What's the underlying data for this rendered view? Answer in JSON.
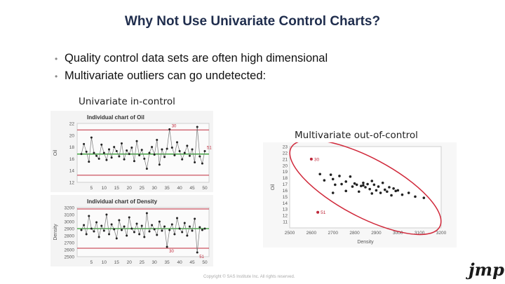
{
  "slide": {
    "title": "Why Not Use Univariate Control Charts?",
    "bullets": [
      "Quality control data sets are often high dimensional",
      "Multivariate outliers can go undetected:"
    ],
    "label_left": "Univariate in-control",
    "label_right": "Multivariate out-of-control",
    "footer": "Copyright © SAS Institute Inc. All rights reserved.",
    "logo": "jmp"
  },
  "colors": {
    "center_line": "#2e9b2e",
    "limit_line": "#c0283a",
    "point": "#222222",
    "ellipse": "#d0283a",
    "highlight": "#c0283a"
  },
  "chart_data": [
    {
      "type": "line",
      "title": "Individual chart of Oil",
      "ylabel": "Oil",
      "x": [
        1,
        2,
        3,
        4,
        5,
        6,
        7,
        8,
        9,
        10,
        11,
        12,
        13,
        14,
        15,
        16,
        17,
        18,
        19,
        20,
        21,
        22,
        23,
        24,
        25,
        26,
        27,
        28,
        29,
        30,
        31,
        32,
        33,
        34,
        35,
        36,
        37,
        38,
        39,
        40,
        41,
        42,
        43,
        44,
        45,
        46,
        47,
        48,
        49,
        50
      ],
      "values": [
        16.8,
        18.5,
        17.2,
        15.5,
        19.6,
        17.0,
        16.5,
        16.0,
        18.4,
        17.0,
        15.8,
        17.6,
        16.2,
        18.0,
        17.3,
        16.4,
        18.6,
        15.9,
        17.4,
        16.8,
        17.9,
        15.6,
        19.0,
        16.6,
        17.5,
        16.0,
        14.3,
        17.0,
        18.0,
        16.7,
        19.2,
        15.0,
        17.6,
        16.3,
        17.7,
        21.0,
        17.9,
        16.6,
        18.8,
        17.3,
        15.9,
        17.0,
        18.2,
        16.5,
        17.6,
        15.4,
        21.4,
        16.4,
        15.2,
        17.3
      ],
      "center": 16.8,
      "ucl": 20.9,
      "lcl": 13.2,
      "ylim": [
        12,
        22
      ],
      "yticks": [
        12,
        14,
        16,
        18,
        20,
        22
      ],
      "xticks": [
        5,
        10,
        15,
        20,
        25,
        30,
        35,
        40,
        45,
        50
      ],
      "annotations": [
        {
          "label": "30",
          "index": 35
        },
        {
          "label": "51",
          "index": 49
        }
      ]
    },
    {
      "type": "line",
      "title": "Individual chart of Density",
      "ylabel": "Density",
      "x": [
        1,
        2,
        3,
        4,
        5,
        6,
        7,
        8,
        9,
        10,
        11,
        12,
        13,
        14,
        15,
        16,
        17,
        18,
        19,
        20,
        21,
        22,
        23,
        24,
        25,
        26,
        27,
        28,
        29,
        30,
        31,
        32,
        33,
        34,
        35,
        36,
        37,
        38,
        39,
        40,
        41,
        42,
        43,
        44,
        45,
        46,
        47,
        48,
        49,
        50
      ],
      "values": [
        2880,
        2950,
        2820,
        3080,
        2900,
        2860,
        2990,
        2780,
        2940,
        2870,
        3100,
        2820,
        2960,
        2890,
        2760,
        3020,
        2880,
        2930,
        2800,
        3060,
        2900,
        2850,
        2970,
        2820,
        2940,
        2780,
        3120,
        2860,
        2950,
        2890,
        2810,
        3000,
        2870,
        2930,
        2640,
        2880,
        2960,
        2820,
        3050,
        2900,
        2850,
        2980,
        2800,
        2930,
        2870,
        3040,
        2560,
        2920,
        2880,
        2900
      ],
      "center": 2900,
      "ucl": 3180,
      "lcl": 2620,
      "ylim": [
        2500,
        3200
      ],
      "yticks": [
        2500,
        2600,
        2700,
        2800,
        2900,
        3000,
        3100,
        3200
      ],
      "xticks": [
        5,
        10,
        15,
        20,
        25,
        30,
        35,
        40,
        45,
        50
      ],
      "annotations": [
        {
          "label": "30",
          "index": 34
        },
        {
          "label": "51",
          "index": 46
        }
      ]
    },
    {
      "type": "scatter",
      "xlabel": "Density",
      "ylabel": "Oil",
      "xlim": [
        2500,
        3200
      ],
      "ylim": [
        10,
        23
      ],
      "xticks": [
        2500,
        2600,
        2700,
        2800,
        2900,
        3000,
        3100,
        3200
      ],
      "yticks": [
        11,
        12,
        13,
        14,
        15,
        16,
        17,
        18,
        19,
        20,
        21,
        22,
        23
      ],
      "points": [
        [
          2600,
          21.0
        ],
        [
          2640,
          18.6
        ],
        [
          2660,
          17.6
        ],
        [
          2690,
          18.5
        ],
        [
          2700,
          17.8
        ],
        [
          2710,
          16.9
        ],
        [
          2730,
          18.3
        ],
        [
          2740,
          17.0
        ],
        [
          2760,
          17.4
        ],
        [
          2780,
          18.2
        ],
        [
          2790,
          16.6
        ],
        [
          2800,
          17.1
        ],
        [
          2810,
          16.9
        ],
        [
          2820,
          15.8
        ],
        [
          2830,
          16.7
        ],
        [
          2840,
          17.2
        ],
        [
          2850,
          16.5
        ],
        [
          2860,
          17.0
        ],
        [
          2870,
          16.2
        ],
        [
          2880,
          17.5
        ],
        [
          2890,
          16.9
        ],
        [
          2900,
          16.0
        ],
        [
          2910,
          16.6
        ],
        [
          2920,
          15.6
        ],
        [
          2930,
          17.2
        ],
        [
          2940,
          16.1
        ],
        [
          2950,
          15.8
        ],
        [
          2960,
          16.5
        ],
        [
          2970,
          15.2
        ],
        [
          2980,
          16.3
        ],
        [
          2990,
          15.9
        ],
        [
          3000,
          16.0
        ],
        [
          3020,
          15.3
        ],
        [
          3050,
          15.6
        ],
        [
          3080,
          15.0
        ],
        [
          3120,
          14.8
        ],
        [
          2700,
          15.6
        ],
        [
          2760,
          15.9
        ],
        [
          2840,
          16.8
        ],
        [
          2880,
          15.5
        ],
        [
          2630,
          12.5
        ]
      ],
      "annotations": [
        {
          "label": "30",
          "x": 2600,
          "y": 21.0
        },
        {
          "label": "51",
          "x": 2630,
          "y": 12.5
        }
      ]
    }
  ]
}
